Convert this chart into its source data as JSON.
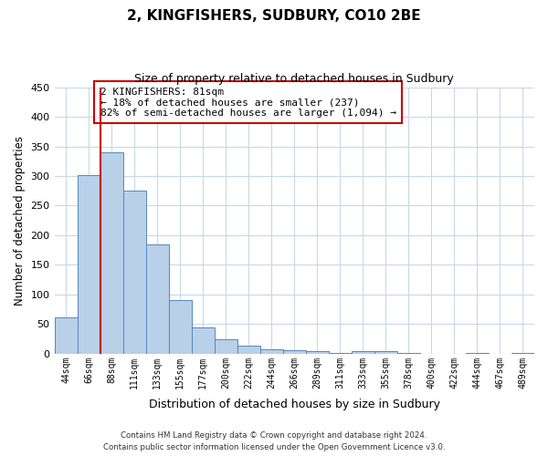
{
  "title": "2, KINGFISHERS, SUDBURY, CO10 2BE",
  "subtitle": "Size of property relative to detached houses in Sudbury",
  "xlabel": "Distribution of detached houses by size in Sudbury",
  "ylabel": "Number of detached properties",
  "bar_labels": [
    "44sqm",
    "66sqm",
    "88sqm",
    "111sqm",
    "133sqm",
    "155sqm",
    "177sqm",
    "200sqm",
    "222sqm",
    "244sqm",
    "266sqm",
    "289sqm",
    "311sqm",
    "333sqm",
    "355sqm",
    "378sqm",
    "400sqm",
    "422sqm",
    "444sqm",
    "467sqm",
    "489sqm"
  ],
  "bar_values": [
    62,
    302,
    340,
    275,
    185,
    90,
    45,
    24,
    14,
    8,
    6,
    4,
    1,
    4,
    4,
    1,
    0,
    0,
    2,
    0,
    2
  ],
  "bar_color": "#b8d0e8",
  "bar_edge_color": "#5588bb",
  "vline_x": 2,
  "vline_color": "#cc0000",
  "annotation_line1": "2 KINGFISHERS: 81sqm",
  "annotation_line2": "← 18% of detached houses are smaller (237)",
  "annotation_line3": "82% of semi-detached houses are larger (1,094) →",
  "annotation_box_color": "#ffffff",
  "annotation_box_edge": "#cc0000",
  "ylim": [
    0,
    450
  ],
  "yticks": [
    0,
    50,
    100,
    150,
    200,
    250,
    300,
    350,
    400,
    450
  ],
  "footer_line1": "Contains HM Land Registry data © Crown copyright and database right 2024.",
  "footer_line2": "Contains public sector information licensed under the Open Government Licence v3.0.",
  "bg_color": "#ffffff",
  "grid_color": "#c8d8e8"
}
